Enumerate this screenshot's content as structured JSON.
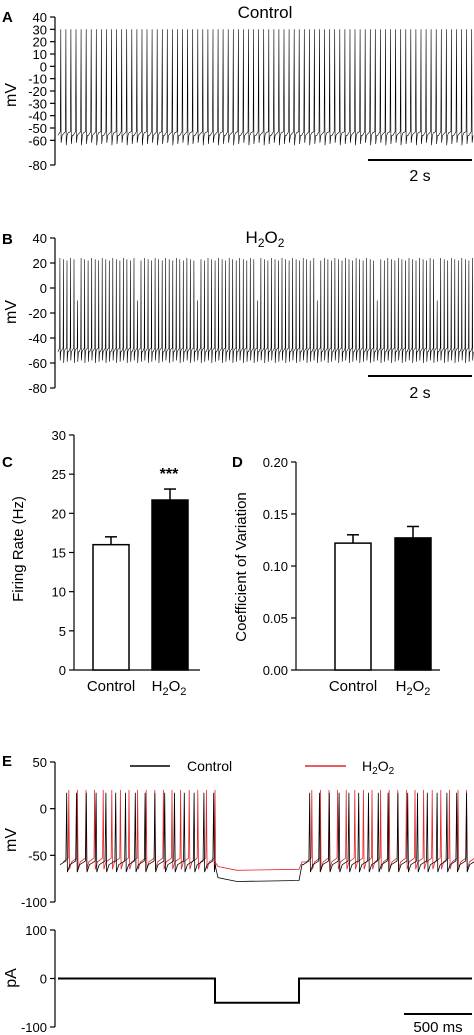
{
  "panels": {
    "A": {
      "letter": "A",
      "title": "Control",
      "ylabel": "mV",
      "yticks": [
        "40",
        "30",
        "20",
        "10",
        "0",
        "-10",
        "-20",
        "-30",
        "-40",
        "-50",
        "-60",
        "-80"
      ],
      "scalebar": "2 s"
    },
    "B": {
      "letter": "B",
      "title_main": "H",
      "title_sub1": "2",
      "title_mid": "O",
      "title_sub2": "2",
      "ylabel": "mV",
      "yticks": [
        "40",
        "20",
        "0",
        "-20",
        "-40",
        "-60",
        "-80"
      ],
      "scalebar": "2 s"
    },
    "C": {
      "letter": "C",
      "ylabel": "Firing Rate (Hz)",
      "yticks": [
        "0",
        "5",
        "10",
        "15",
        "20",
        "25",
        "30"
      ],
      "x_control": "Control",
      "x_h_main": "H",
      "x_h_sub1": "2",
      "x_h_mid": "O",
      "x_h_sub2": "2",
      "significance": "***"
    },
    "D": {
      "letter": "D",
      "ylabel": "Coefficient of Variation",
      "yticks": [
        "0.00",
        "0.05",
        "0.10",
        "0.15",
        "0.20"
      ],
      "x_control": "Control",
      "x_h_main": "H",
      "x_h_sub1": "2",
      "x_h_mid": "O",
      "x_h_sub2": "2"
    },
    "E": {
      "letter": "E",
      "ylabel_top": "mV",
      "ylabel_bottom": "pA",
      "yticks_top": [
        "50",
        "0",
        "-50",
        "-100"
      ],
      "yticks_bottom": [
        "100",
        "0",
        "-100"
      ],
      "legend_control": "Control",
      "legend_h_main": "H",
      "legend_h_sub1": "2",
      "legend_h_mid": "O",
      "legend_h_sub2": "2",
      "scalebar": "500 ms"
    }
  },
  "colors": {
    "control": "#000000",
    "h2o2": "#e3262b",
    "control_bar_fill": "#ffffff",
    "h2o2_bar_fill": "#000000"
  },
  "chart_data": [
    {
      "type": "line",
      "panel": "A",
      "title": "Control",
      "ylabel": "mV",
      "ylim": [
        -80,
        40
      ],
      "series": [
        {
          "values": {
            "baseline_mV": -55,
            "spike_peak_mV": 30,
            "trough_mV": -62
          }
        }
      ]
    },
    {
      "type": "line",
      "panel": "B",
      "ylabel": "mV",
      "ylim": [
        -80,
        40
      ],
      "series": [
        {
          "values": {
            "baseline_mV": -50,
            "spike_peak_mV": 24,
            "trough_mV": -58
          }
        }
      ]
    },
    {
      "type": "bar",
      "panel": "C",
      "ylabel": "Firing Rate (Hz)",
      "ylim": [
        0,
        30
      ],
      "categories": [
        "Control",
        "H2O2"
      ],
      "values": [
        16.0,
        21.7
      ],
      "errors": [
        1.0,
        1.4
      ],
      "annotations": [
        "***"
      ]
    },
    {
      "type": "bar",
      "panel": "D",
      "ylabel": "Coefficient of Variation",
      "ylim": [
        0,
        0.2
      ],
      "categories": [
        "Control",
        "H2O2"
      ],
      "values": [
        0.122,
        0.127
      ],
      "errors": [
        0.008,
        0.011
      ]
    },
    {
      "type": "line",
      "panel": "E-voltage",
      "ylabel": "mV",
      "ylim": [
        -100,
        50
      ],
      "series": [
        {
          "name": "Control",
          "values": {
            "baseline_mV": -60,
            "spike_peak_mV": 17,
            "hyperpolarized_mV": -78
          }
        },
        {
          "name": "H2O2",
          "values": {
            "baseline_mV": -57,
            "spike_peak_mV": 20,
            "hyperpolarized_mV": -66
          }
        }
      ]
    },
    {
      "type": "line",
      "panel": "E-current",
      "ylabel": "pA",
      "ylim": [
        -100,
        100
      ],
      "series": [
        {
          "values": {
            "holding_pA": 0,
            "step_pA": -50
          }
        }
      ]
    }
  ]
}
